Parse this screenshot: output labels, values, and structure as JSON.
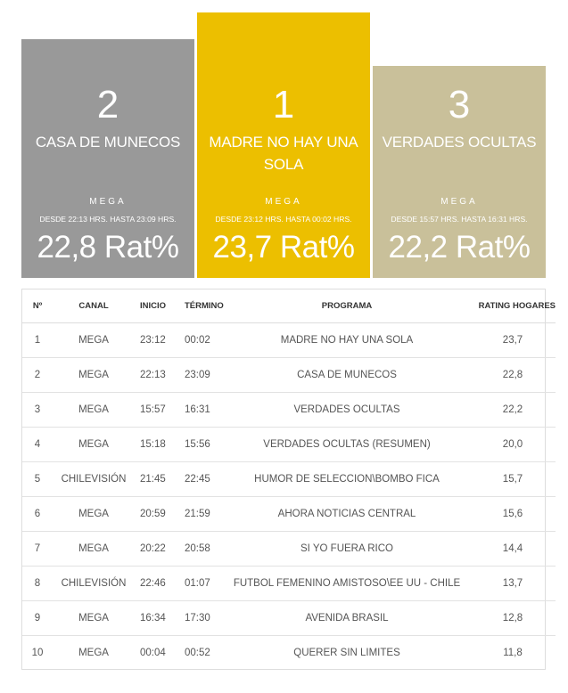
{
  "podium": [
    {
      "rank": "2",
      "program": "CASA DE MUNECOS",
      "channel": "MEGA",
      "time": "DESDE 22:13 HRS. HASTA 23:09 HRS.",
      "rating": "22,8 Rat%",
      "color": "#999999"
    },
    {
      "rank": "1",
      "program": "MADRE NO HAY UNA SOLA",
      "channel": "MEGA",
      "time": "DESDE 23:12 HRS. HASTA 00:02 HRS.",
      "rating": "23,7 Rat%",
      "color": "#ecbf00"
    },
    {
      "rank": "3",
      "program": "VERDADES OCULTAS",
      "channel": "MEGA",
      "time": "DESDE 15:57 HRS. HASTA 16:31 HRS.",
      "rating": "22,2 Rat%",
      "color": "#c9c09a"
    }
  ],
  "table": {
    "headers": {
      "n": "Nº",
      "canal": "CANAL",
      "inicio": "INICIO",
      "termino": "TÉRMINO",
      "programa": "PROGRAMA",
      "rating": "RATING HOGARES"
    },
    "rows": [
      {
        "n": "1",
        "canal": "MEGA",
        "inicio": "23:12",
        "termino": "00:02",
        "programa": "MADRE NO HAY UNA SOLA",
        "rating": "23,7"
      },
      {
        "n": "2",
        "canal": "MEGA",
        "inicio": "22:13",
        "termino": "23:09",
        "programa": "CASA DE MUNECOS",
        "rating": "22,8"
      },
      {
        "n": "3",
        "canal": "MEGA",
        "inicio": "15:57",
        "termino": "16:31",
        "programa": "VERDADES OCULTAS",
        "rating": "22,2"
      },
      {
        "n": "4",
        "canal": "MEGA",
        "inicio": "15:18",
        "termino": "15:56",
        "programa": "VERDADES OCULTAS (RESUMEN)",
        "rating": "20,0"
      },
      {
        "n": "5",
        "canal": "CHILEVISIÓN",
        "inicio": "21:45",
        "termino": "22:45",
        "programa": "HUMOR DE SELECCION\\BOMBO FICA",
        "rating": "15,7"
      },
      {
        "n": "6",
        "canal": "MEGA",
        "inicio": "20:59",
        "termino": "21:59",
        "programa": "AHORA NOTICIAS CENTRAL",
        "rating": "15,6"
      },
      {
        "n": "7",
        "canal": "MEGA",
        "inicio": "20:22",
        "termino": "20:58",
        "programa": "SI YO FUERA RICO",
        "rating": "14,4"
      },
      {
        "n": "8",
        "canal": "CHILEVISIÓN",
        "inicio": "22:46",
        "termino": "01:07",
        "programa": "FUTBOL FEMENINO AMISTOSO\\EE UU - CHILE",
        "rating": "13,7"
      },
      {
        "n": "9",
        "canal": "MEGA",
        "inicio": "16:34",
        "termino": "17:30",
        "programa": "AVENIDA BRASIL",
        "rating": "12,8"
      },
      {
        "n": "10",
        "canal": "MEGA",
        "inicio": "00:04",
        "termino": "00:52",
        "programa": "QUERER SIN LIMITES",
        "rating": "11,8"
      }
    ]
  }
}
